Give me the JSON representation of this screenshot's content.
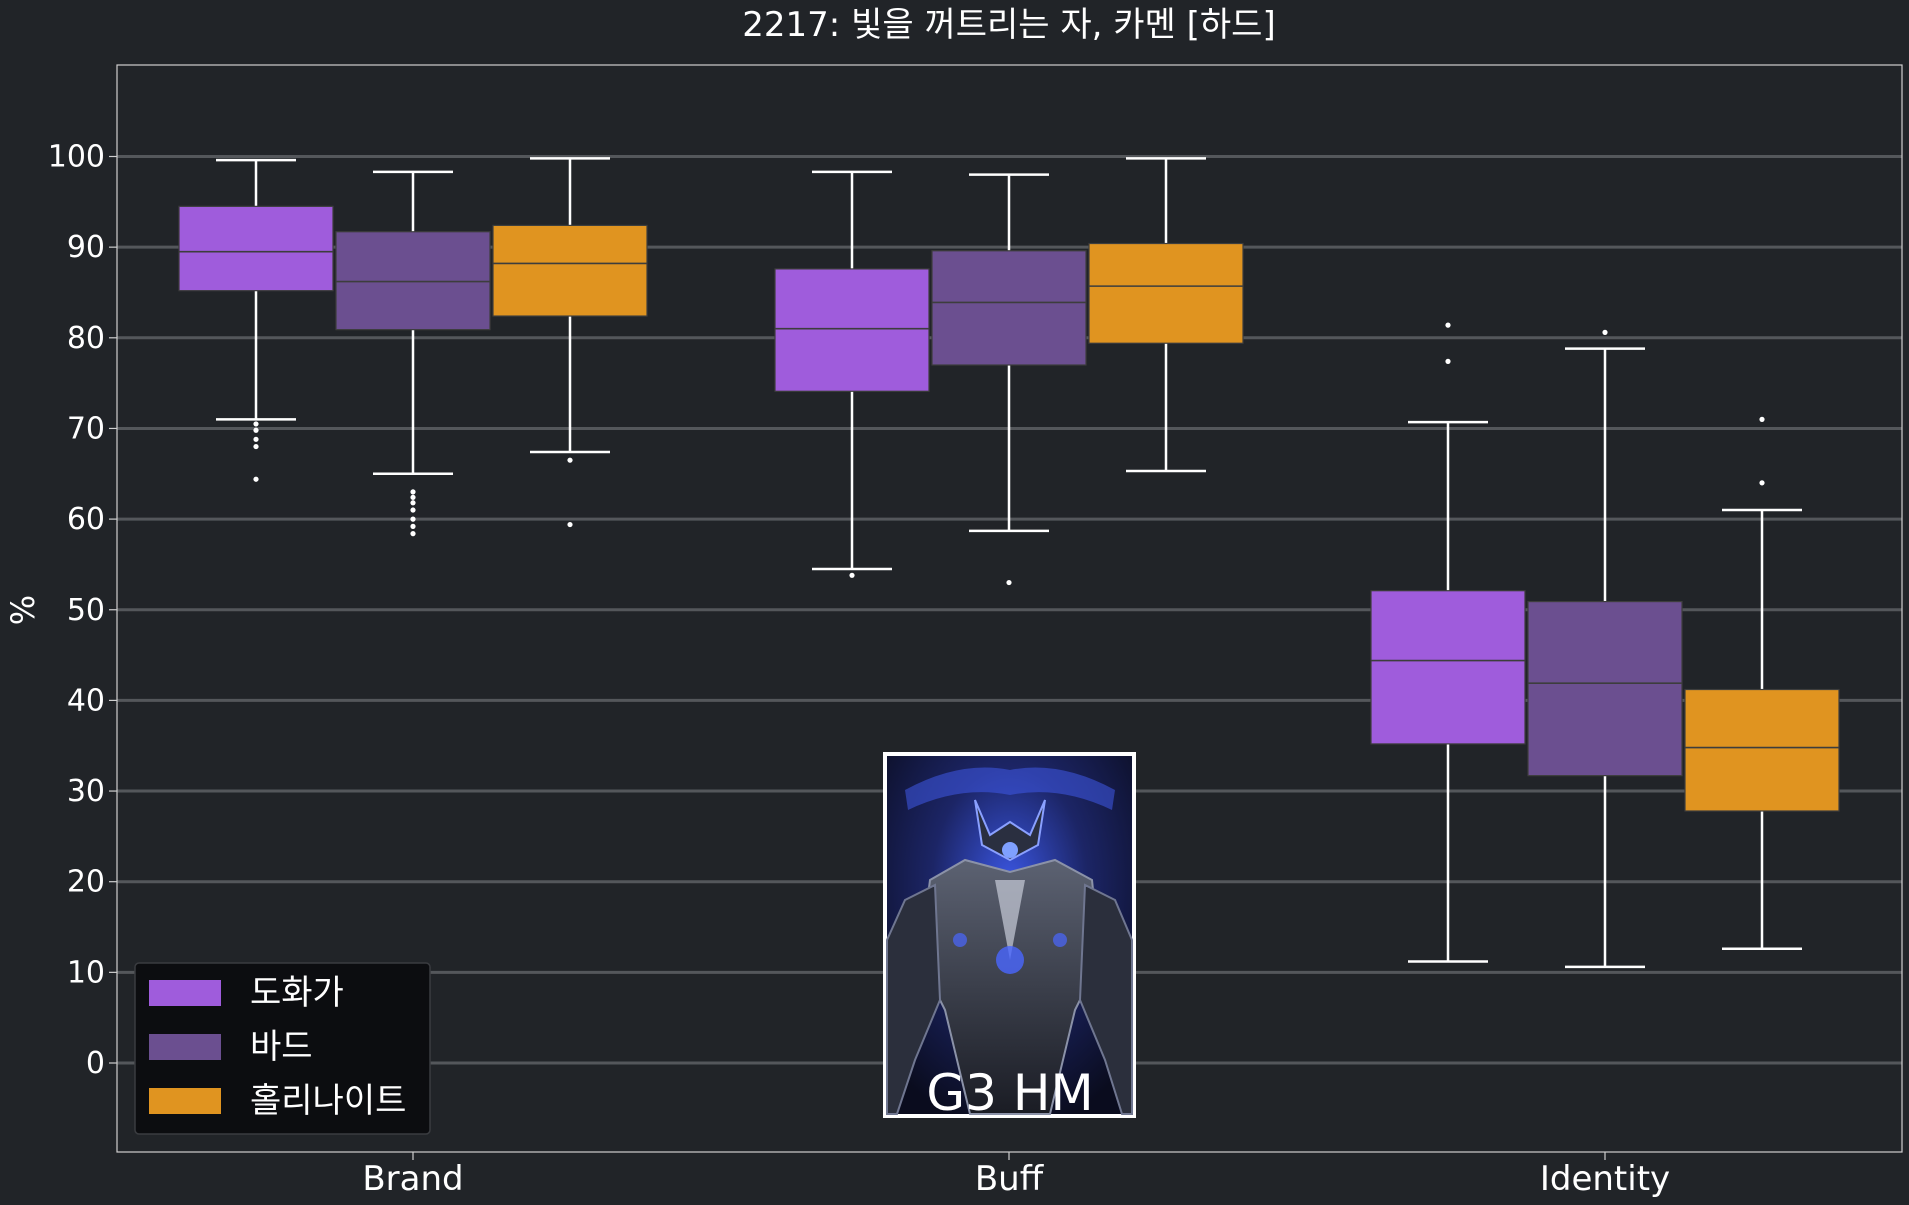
{
  "chart_data": {
    "type": "box",
    "title": "2217: 빛을 꺼트리는 자, 카멘 [하드]",
    "ylabel": "%",
    "xlabel": "",
    "ylim": [
      -10,
      110
    ],
    "yticks": [
      0,
      10,
      20,
      30,
      40,
      50,
      60,
      70,
      80,
      90,
      100
    ],
    "grid": true,
    "legend_position": "bottom-left",
    "categories": [
      "Brand",
      "Buff",
      "Identity"
    ],
    "series": [
      {
        "name": "도화가",
        "color": "#9f5cdc",
        "boxes": [
          {
            "whisker_low": 71.0,
            "q1": 85.2,
            "median": 89.5,
            "q3": 94.5,
            "whisker_high": 99.6,
            "outliers": [
              70.5,
              69.8,
              68.8,
              68.0,
              64.4
            ]
          },
          {
            "whisker_low": 54.5,
            "q1": 74.1,
            "median": 81.0,
            "q3": 87.6,
            "whisker_high": 98.3,
            "outliers": [
              53.8
            ]
          },
          {
            "whisker_low": 11.2,
            "q1": 35.2,
            "median": 44.4,
            "q3": 52.1,
            "whisker_high": 70.7,
            "outliers": [
              77.4,
              81.4
            ]
          }
        ]
      },
      {
        "name": "바드",
        "color": "#6b4f90",
        "boxes": [
          {
            "whisker_low": 65.0,
            "q1": 80.9,
            "median": 86.2,
            "q3": 91.7,
            "whisker_high": 98.3,
            "outliers": [
              63.0,
              62.4,
              61.8,
              61.0,
              60.0,
              59.2,
              58.4
            ]
          },
          {
            "whisker_low": 58.7,
            "q1": 77.0,
            "median": 83.9,
            "q3": 89.6,
            "whisker_high": 98.0,
            "outliers": [
              53.0
            ]
          },
          {
            "whisker_low": 10.6,
            "q1": 31.7,
            "median": 41.9,
            "q3": 50.9,
            "whisker_high": 78.8,
            "outliers": [
              80.6
            ]
          }
        ]
      },
      {
        "name": "홀리나이트",
        "color": "#e09420",
        "boxes": [
          {
            "whisker_low": 67.4,
            "q1": 82.4,
            "median": 88.2,
            "q3": 92.4,
            "whisker_high": 99.8,
            "outliers": [
              66.5,
              59.4
            ]
          },
          {
            "whisker_low": 65.3,
            "q1": 79.4,
            "median": 85.7,
            "q3": 90.4,
            "whisker_high": 99.8,
            "outliers": []
          },
          {
            "whisker_low": 12.6,
            "q1": 27.8,
            "median": 34.8,
            "q3": 41.2,
            "whisker_high": 61.0,
            "outliers": [
              64.0,
              71.0
            ]
          }
        ]
      }
    ]
  },
  "badge": {
    "label": "G3 HM",
    "image_icon": "boss-portrait-icon"
  },
  "colors": {
    "background": "#212428",
    "grid": "#54575b",
    "axes": "#cfcfcf",
    "whisker": "#ffffff",
    "legend_bg": "#0c0d10"
  }
}
